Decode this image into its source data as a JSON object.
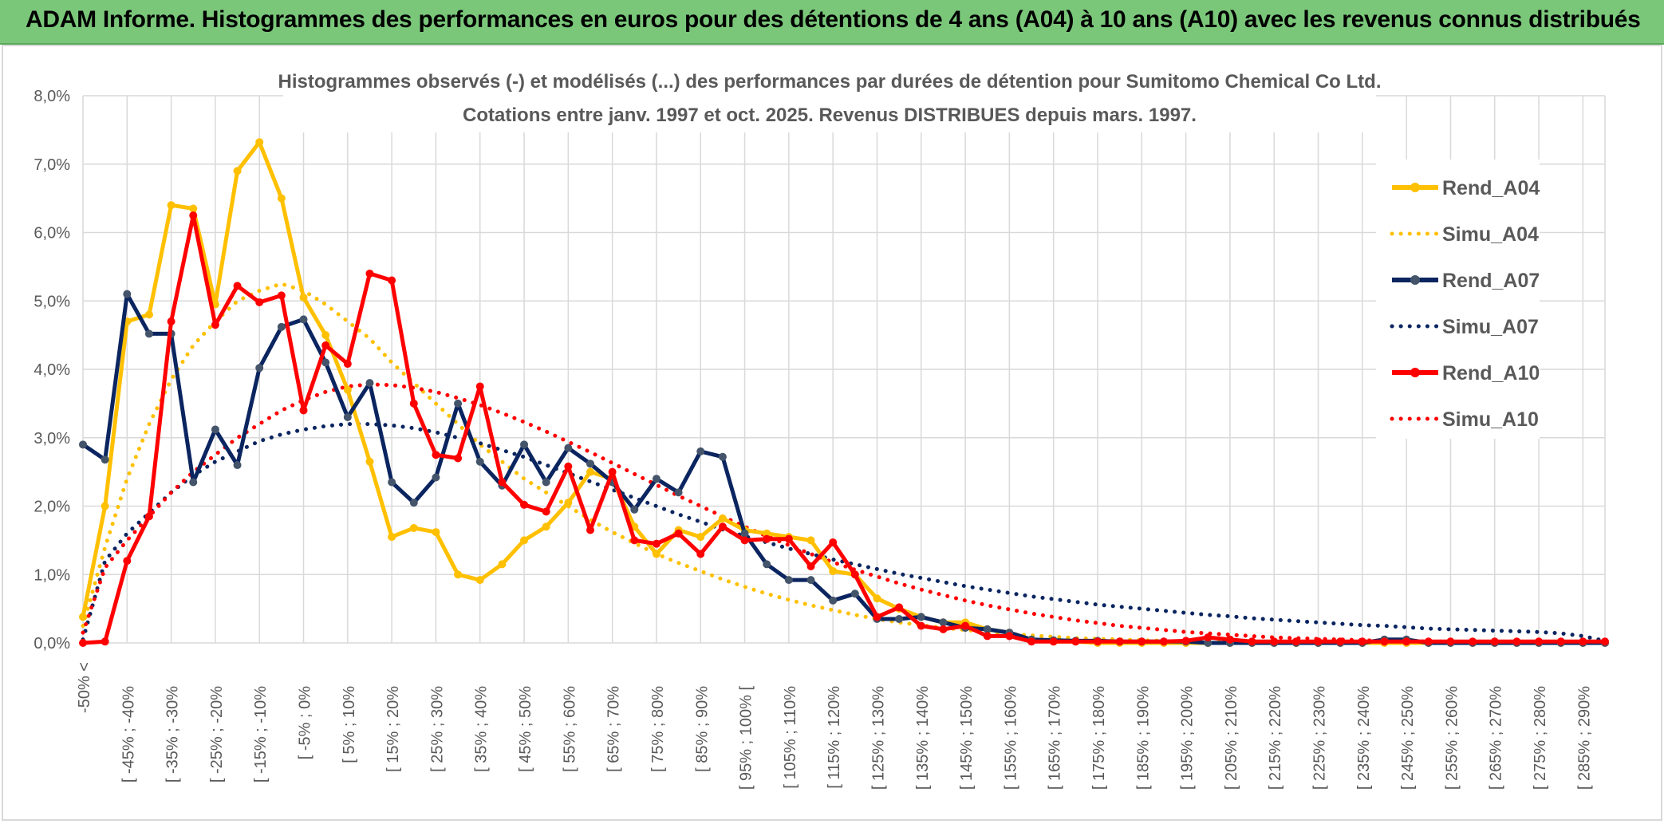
{
  "banner": {
    "title": "ADAM Informe. Histogrammes des performances en euros pour des détentions de 4 ans (A04) à 10 ans (A10) avec les revenus connus distribués"
  },
  "colors": {
    "banner": "#7ac77a",
    "A04": "#ffc000",
    "A07": "#0b2560",
    "A10": "#ff0000",
    "grid": "#d9d9d9",
    "text": "#595959"
  },
  "chart_data": {
    "type": "line",
    "title": "Histogrammes observés (-) et modélisés (...) des performances par durées de détention pour Sumitomo Chemical Co Ltd.",
    "subtitle": "Cotations entre janv. 1997 et oct. 2025. Revenus DISTRIBUES depuis mars. 1997.",
    "ylim": [
      0,
      8
    ],
    "yticks": [
      "0,0%",
      "1,0%",
      "2,0%",
      "3,0%",
      "4,0%",
      "5,0%",
      "6,0%",
      "7,0%",
      "8,0%"
    ],
    "grid": true,
    "legend_position": "right",
    "x_tick_labels": [
      "-50% <",
      "[ -45% ; -40%",
      "[ -35% ; -30%",
      "[ -25% ; -20%",
      "[ -15% ; -10%",
      "[ -5% ; 0%",
      "[ 5% ; 10%",
      "[ 15% ; 20%",
      "[ 25% ; 30%",
      "[ 35% ; 40%",
      "[ 45% ; 50%",
      "[ 55% ; 60%",
      "[ 65% ; 70%",
      "[ 75% ; 80%",
      "[ 85% ; 90%",
      "[ 95% ; 100% [",
      "[ 105% ; 110%",
      "[ 115% ; 120%",
      "[ 125% ; 130%",
      "[ 135% ; 140%",
      "[ 145% ; 150%",
      "[ 155% ; 160%",
      "[ 165% ; 170%",
      "[ 175% ; 180%",
      "[ 185% ; 190%",
      "[ 195% ; 200%",
      "[ 205% ; 210%",
      "[ 215% ; 220%",
      "[ 225% ; 230%",
      "[ 235% ; 240%",
      "[ 245% ; 250%",
      "[ 255% ; 260%",
      "[ 265% ; 270%",
      "[ 275% ; 280%",
      "[ 285% ; 290%"
    ],
    "series": [
      {
        "name": "Rend_A04",
        "style": "solid",
        "color": "#ffc000",
        "values": [
          0.38,
          2.0,
          4.7,
          4.8,
          6.4,
          6.35,
          4.95,
          6.9,
          7.32,
          6.5,
          5.05,
          4.5,
          3.7,
          2.65,
          1.55,
          1.68,
          1.62,
          1.0,
          0.92,
          1.15,
          1.5,
          1.7,
          2.05,
          2.5,
          2.4,
          1.7,
          1.3,
          1.65,
          1.55,
          1.82,
          1.65,
          1.6,
          1.55,
          1.5,
          1.05,
          1.0,
          0.65,
          0.5,
          0.38,
          0.3,
          0.3,
          0.2,
          0.15,
          0.05,
          0.02,
          0.02,
          0,
          0,
          0,
          0,
          0,
          0,
          0,
          0,
          0,
          0,
          0,
          0,
          0,
          0,
          0,
          0,
          0,
          0,
          0,
          0,
          0,
          0,
          0,
          0
        ]
      },
      {
        "name": "Simu_A04",
        "style": "dotted",
        "color": "#ffc000",
        "values": [
          0.25,
          1.4,
          2.4,
          3.2,
          3.85,
          4.35,
          4.7,
          5.0,
          5.15,
          5.25,
          5.15,
          4.95,
          4.7,
          4.45,
          4.1,
          3.8,
          3.5,
          3.2,
          2.9,
          2.65,
          2.4,
          2.2,
          2.0,
          1.8,
          1.62,
          1.46,
          1.3,
          1.17,
          1.05,
          0.93,
          0.82,
          0.72,
          0.63,
          0.55,
          0.48,
          0.41,
          0.35,
          0.3,
          0.26,
          0.22,
          0.19,
          0.16,
          0.13,
          0.11,
          0.09,
          0.07,
          0.06,
          0.05,
          0.04,
          0.03,
          0.02,
          0.02,
          0.01,
          0.01,
          0.01,
          0.01,
          0,
          0,
          0,
          0,
          0,
          0,
          0,
          0,
          0,
          0,
          0,
          0,
          0,
          0
        ]
      },
      {
        "name": "Rend_A07",
        "style": "solid",
        "color": "#0b2560",
        "values": [
          2.9,
          2.68,
          5.1,
          4.52,
          4.52,
          2.35,
          3.12,
          2.6,
          4.02,
          4.62,
          4.73,
          4.1,
          3.3,
          3.8,
          2.35,
          2.05,
          2.42,
          3.5,
          2.65,
          2.3,
          2.9,
          2.35,
          2.85,
          2.62,
          2.35,
          1.95,
          2.4,
          2.2,
          2.8,
          2.72,
          1.6,
          1.15,
          0.92,
          0.92,
          0.62,
          0.72,
          0.35,
          0.35,
          0.38,
          0.3,
          0.22,
          0.2,
          0.15,
          0.05,
          0.04,
          0.03,
          0.03,
          0.02,
          0.02,
          0.02,
          0.02,
          0,
          0,
          0,
          0,
          0,
          0,
          0,
          0,
          0.05,
          0.05,
          0,
          0,
          0,
          0,
          0,
          0,
          0,
          0,
          0
        ]
      },
      {
        "name": "Simu_A07",
        "style": "dotted",
        "color": "#0b2560",
        "values": [
          0.05,
          1.2,
          1.6,
          1.9,
          2.2,
          2.45,
          2.65,
          2.8,
          2.95,
          3.05,
          3.12,
          3.17,
          3.2,
          3.2,
          3.18,
          3.14,
          3.08,
          3.0,
          2.92,
          2.82,
          2.72,
          2.6,
          2.48,
          2.36,
          2.24,
          2.12,
          2.0,
          1.88,
          1.77,
          1.66,
          1.56,
          1.47,
          1.38,
          1.3,
          1.22,
          1.15,
          1.08,
          1.01,
          0.95,
          0.89,
          0.83,
          0.78,
          0.73,
          0.68,
          0.64,
          0.6,
          0.56,
          0.53,
          0.5,
          0.47,
          0.44,
          0.41,
          0.39,
          0.36,
          0.34,
          0.32,
          0.3,
          0.28,
          0.26,
          0.25,
          0.23,
          0.21,
          0.2,
          0.19,
          0.18,
          0.17,
          0.16,
          0.14,
          0.1,
          0.03
        ]
      },
      {
        "name": "Rend_A10",
        "style": "solid",
        "color": "#ff0000",
        "values": [
          0,
          0.02,
          1.2,
          1.85,
          4.7,
          6.25,
          4.65,
          5.22,
          4.98,
          5.08,
          3.4,
          4.35,
          4.08,
          5.4,
          5.3,
          3.5,
          2.75,
          2.7,
          3.75,
          2.35,
          2.02,
          1.92,
          2.58,
          1.65,
          2.5,
          1.5,
          1.45,
          1.6,
          1.3,
          1.7,
          1.5,
          1.52,
          1.52,
          1.12,
          1.47,
          1.0,
          0.38,
          0.52,
          0.25,
          0.2,
          0.25,
          0.1,
          0.1,
          0.02,
          0.02,
          0.02,
          0.02,
          0.02,
          0.02,
          0.02,
          0.03,
          0.08,
          0.05,
          0.02,
          0.02,
          0.02,
          0.02,
          0.02,
          0.02,
          0.02,
          0.02,
          0.02,
          0.02,
          0.02,
          0.02,
          0.02,
          0.02,
          0.02,
          0.02,
          0.02
        ]
      },
      {
        "name": "Simu_A10",
        "style": "dotted",
        "color": "#ff0000",
        "values": [
          0.15,
          1.1,
          1.5,
          1.85,
          2.2,
          2.5,
          2.75,
          3.0,
          3.2,
          3.4,
          3.55,
          3.67,
          3.75,
          3.78,
          3.77,
          3.73,
          3.67,
          3.58,
          3.48,
          3.36,
          3.23,
          3.09,
          2.94,
          2.79,
          2.63,
          2.47,
          2.31,
          2.15,
          2.0,
          1.85,
          1.7,
          1.56,
          1.43,
          1.3,
          1.18,
          1.07,
          0.97,
          0.87,
          0.78,
          0.7,
          0.62,
          0.55,
          0.49,
          0.43,
          0.38,
          0.33,
          0.29,
          0.25,
          0.22,
          0.19,
          0.16,
          0.14,
          0.12,
          0.1,
          0.08,
          0.07,
          0.06,
          0.05,
          0.04,
          0.03,
          0.03,
          0.02,
          0.02,
          0.01,
          0.01,
          0.01,
          0.01,
          0,
          0,
          0
        ]
      }
    ]
  }
}
